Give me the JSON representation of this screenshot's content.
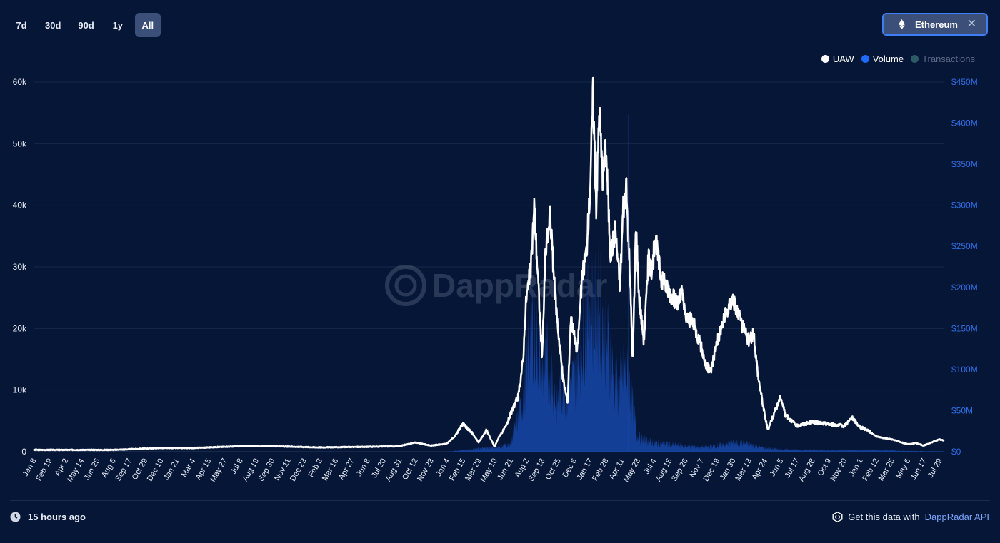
{
  "ranges": [
    "7d",
    "30d",
    "90d",
    "1y",
    "All"
  ],
  "active_range": "All",
  "network": {
    "label": "Ethereum",
    "icon": "ethereum-icon",
    "close_icon": "close-icon"
  },
  "legend": [
    {
      "label": "UAW",
      "color": "#ffffff"
    },
    {
      "label": "Volume",
      "color": "#1f6bff"
    },
    {
      "label": "Transactions",
      "color": "#2e5a66"
    }
  ],
  "watermark": "DappRadar",
  "footer": {
    "updated": "15 hours ago",
    "api_prefix": "Get this data with",
    "api_link": "DappRadar API"
  },
  "chart_data": {
    "type": "line",
    "x_tick_labels": [
      "Jan 8",
      "Feb 19",
      "Apr 2",
      "May 14",
      "Jun 25",
      "Aug 6",
      "Sep 17",
      "Oct 29",
      "Dec 10",
      "Jan 21",
      "Mar 4",
      "Apr 15",
      "May 27",
      "Jul 8",
      "Aug 19",
      "Sep 30",
      "Nov 11",
      "Dec 23",
      "Feb 3",
      "Mar 16",
      "Apr 27",
      "Jun 8",
      "Jul 20",
      "Aug 31",
      "Oct 12",
      "Nov 23",
      "Jan 4",
      "Feb 15",
      "Mar 29",
      "May 10",
      "Jun 21",
      "Aug 2",
      "Sep 13",
      "Oct 25",
      "Dec 6",
      "Jan 17",
      "Feb 28",
      "Apr 11",
      "May 23",
      "Jul 4",
      "Aug 15",
      "Sep 26",
      "Nov 7",
      "Dec 19",
      "Jan 30",
      "Mar 13",
      "Apr 24",
      "Jun 5",
      "Jul 17",
      "Aug 28",
      "Oct 9",
      "Nov 20",
      "Jan 1",
      "Feb 12",
      "Mar 25",
      "May 6",
      "Jun 17",
      "Jul 29"
    ],
    "y_left": {
      "ticks": [
        "0",
        "10k",
        "20k",
        "30k",
        "40k",
        "50k",
        "60k"
      ],
      "ylim": [
        0,
        60000
      ]
    },
    "y_right": {
      "ticks": [
        "$0",
        "$50M",
        "$100M",
        "$150M",
        "$200M",
        "$250M",
        "$300M",
        "$350M",
        "$400M",
        "$450M"
      ],
      "ylim": [
        0,
        450000000
      ]
    },
    "series": [
      {
        "name": "UAW",
        "axis": "left",
        "points": [
          [
            0,
            300
          ],
          [
            5,
            300
          ],
          [
            8,
            600
          ],
          [
            10,
            600
          ],
          [
            13,
            900
          ],
          [
            15,
            900
          ],
          [
            18,
            700
          ],
          [
            21,
            800
          ],
          [
            23,
            900
          ],
          [
            24,
            1500
          ],
          [
            25,
            1000
          ],
          [
            26,
            1300
          ],
          [
            26.5,
            2500
          ],
          [
            27,
            4500
          ],
          [
            27.6,
            3000
          ],
          [
            28,
            1500
          ],
          [
            28.5,
            3500
          ],
          [
            29,
            800
          ],
          [
            29.3,
            2500
          ],
          [
            29.7,
            4000
          ],
          [
            30,
            6000
          ],
          [
            30.5,
            9000
          ],
          [
            30.8,
            15000
          ],
          [
            31,
            25000
          ],
          [
            31.3,
            30000
          ],
          [
            31.5,
            40000
          ],
          [
            31.7,
            30000
          ],
          [
            32,
            15000
          ],
          [
            32.2,
            32000
          ],
          [
            32.5,
            38000
          ],
          [
            32.8,
            26000
          ],
          [
            33,
            20000
          ],
          [
            33.3,
            12000
          ],
          [
            33.6,
            8000
          ],
          [
            33.8,
            22000
          ],
          [
            34.2,
            16000
          ],
          [
            34.5,
            28000
          ],
          [
            34.8,
            33000
          ],
          [
            35,
            42000
          ],
          [
            35.2,
            58000
          ],
          [
            35.4,
            40000
          ],
          [
            35.6,
            56000
          ],
          [
            35.8,
            44000
          ],
          [
            36,
            50000
          ],
          [
            36.3,
            32000
          ],
          [
            36.6,
            36000
          ],
          [
            36.9,
            27000
          ],
          [
            37.1,
            40000
          ],
          [
            37.3,
            42000
          ],
          [
            37.5,
            30000
          ],
          [
            37.7,
            15000
          ],
          [
            37.9,
            37000
          ],
          [
            38.1,
            25000
          ],
          [
            38.4,
            18000
          ],
          [
            38.7,
            32000
          ],
          [
            38.9,
            28000
          ],
          [
            39.1,
            35000
          ],
          [
            39.5,
            28000
          ],
          [
            40,
            26000
          ],
          [
            40.5,
            24000
          ],
          [
            40.8,
            26000
          ],
          [
            41,
            22000
          ],
          [
            41.5,
            21000
          ],
          [
            42,
            17000
          ],
          [
            42.3,
            14000
          ],
          [
            42.6,
            13000
          ],
          [
            43,
            18000
          ],
          [
            43.5,
            22000
          ],
          [
            44,
            25000
          ],
          [
            44.5,
            21000
          ],
          [
            45,
            18000
          ],
          [
            45.3,
            19000
          ],
          [
            45.6,
            12000
          ],
          [
            46,
            6000
          ],
          [
            46.2,
            3500
          ],
          [
            46.4,
            5000
          ],
          [
            46.8,
            7500
          ],
          [
            47,
            9000
          ],
          [
            47.3,
            6000
          ],
          [
            47.7,
            5000
          ],
          [
            48,
            4200
          ],
          [
            49,
            4800
          ],
          [
            50,
            4500
          ],
          [
            51,
            4200
          ],
          [
            51.5,
            5500
          ],
          [
            52,
            4000
          ],
          [
            52.5,
            3500
          ],
          [
            53,
            2500
          ],
          [
            53.5,
            2200
          ],
          [
            54,
            2000
          ],
          [
            55,
            1200
          ],
          [
            55.5,
            1400
          ],
          [
            56,
            1000
          ],
          [
            56.5,
            1500
          ],
          [
            57,
            2000
          ],
          [
            57.3,
            1800
          ]
        ]
      },
      {
        "name": "Volume",
        "axis": "right",
        "points": [
          [
            0,
            0
          ],
          [
            26,
            0
          ],
          [
            27,
            2000000
          ],
          [
            28,
            4000000
          ],
          [
            29,
            6000000
          ],
          [
            30,
            10000000
          ],
          [
            30.7,
            60000000
          ],
          [
            31,
            100000000
          ],
          [
            31.2,
            160000000
          ],
          [
            31.4,
            180000000
          ],
          [
            31.6,
            150000000
          ],
          [
            31.8,
            140000000
          ],
          [
            32,
            100000000
          ],
          [
            32.3,
            120000000
          ],
          [
            32.6,
            110000000
          ],
          [
            32.9,
            60000000
          ],
          [
            33.2,
            90000000
          ],
          [
            33.5,
            80000000
          ],
          [
            33.8,
            100000000
          ],
          [
            34,
            90000000
          ],
          [
            34.3,
            120000000
          ],
          [
            34.6,
            170000000
          ],
          [
            34.9,
            190000000
          ],
          [
            35.1,
            200000000
          ],
          [
            35.3,
            180000000
          ],
          [
            35.6,
            210000000
          ],
          [
            35.9,
            160000000
          ],
          [
            36.2,
            140000000
          ],
          [
            36.5,
            100000000
          ],
          [
            36.8,
            80000000
          ],
          [
            37,
            100000000
          ],
          [
            37.2,
            110000000
          ],
          [
            37.5,
            90000000
          ],
          [
            37.7,
            60000000
          ],
          [
            38,
            20000000
          ],
          [
            38.5,
            15000000
          ],
          [
            39,
            12000000
          ],
          [
            40,
            10000000
          ],
          [
            41,
            8000000
          ],
          [
            42,
            6000000
          ],
          [
            43,
            8000000
          ],
          [
            44,
            12000000
          ],
          [
            45,
            10000000
          ],
          [
            46,
            5000000
          ],
          [
            47,
            3000000
          ],
          [
            50,
            2000000
          ],
          [
            53,
            2000000
          ],
          [
            55,
            1000000
          ],
          [
            57.3,
            500000
          ]
        ]
      }
    ],
    "grid": true,
    "legend_position": "top-right"
  }
}
